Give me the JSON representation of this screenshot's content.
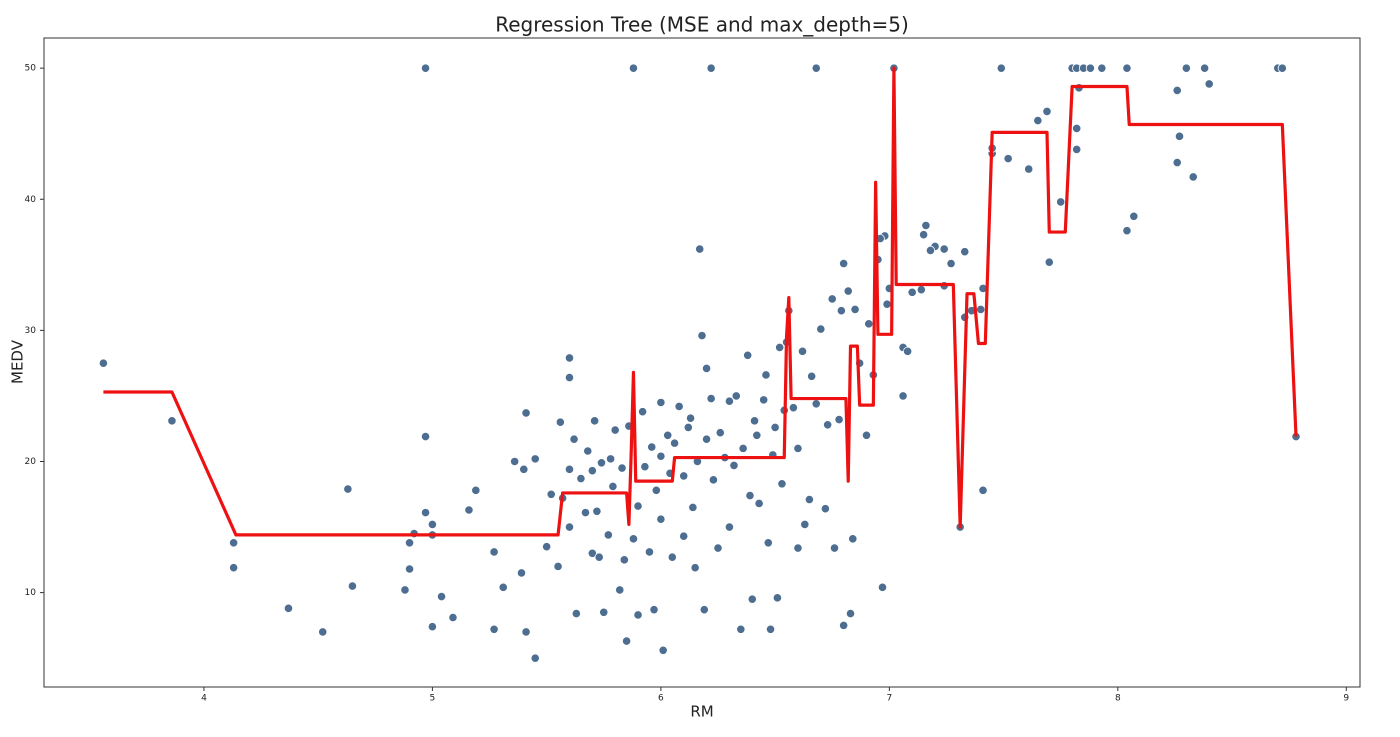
{
  "chart_data": {
    "type": "scatter",
    "title": "Regression Tree (MSE and max_depth=5)",
    "xlabel": "RM",
    "ylabel": "MEDV",
    "xlim": [
      3.3,
      9.06
    ],
    "ylim": [
      2.8,
      52.3
    ],
    "xticks": [
      4,
      5,
      6,
      7,
      8,
      9
    ],
    "yticks": [
      10,
      20,
      30,
      40,
      50
    ],
    "series": [
      {
        "type": "scatter",
        "color": "#4e6e91",
        "x": [
          3.56,
          3.86,
          4.13,
          4.13,
          4.37,
          4.52,
          4.63,
          4.65,
          4.88,
          4.9,
          4.9,
          4.92,
          4.97,
          4.97,
          4.97,
          5.0,
          5.0,
          5.04,
          5.0,
          5.09,
          5.16,
          5.19,
          5.27,
          5.27,
          5.31,
          5.36,
          5.39,
          5.4,
          5.41,
          5.41,
          5.45,
          5.45,
          5.5,
          5.52,
          5.55,
          5.56,
          5.57,
          5.6,
          5.6,
          5.6,
          5.6,
          5.62,
          5.63,
          5.65,
          5.67,
          5.68,
          5.7,
          5.7,
          5.71,
          5.72,
          5.73,
          5.74,
          5.75,
          5.77,
          5.78,
          5.79,
          5.8,
          5.82,
          5.83,
          5.84,
          5.85,
          5.86,
          5.88,
          5.9,
          5.9,
          5.92,
          5.93,
          5.95,
          5.96,
          5.97,
          5.98,
          6.0,
          6.0,
          6.0,
          6.01,
          6.03,
          6.04,
          6.05,
          6.06,
          6.08,
          6.1,
          6.1,
          6.12,
          6.13,
          6.14,
          6.15,
          6.16,
          6.17,
          6.18,
          6.19,
          6.2,
          6.2,
          6.22,
          6.23,
          6.25,
          6.26,
          6.28,
          6.3,
          6.3,
          6.32,
          6.33,
          6.35,
          6.36,
          6.38,
          6.39,
          6.4,
          6.41,
          6.42,
          6.43,
          6.45,
          6.46,
          6.47,
          6.48,
          6.49,
          6.5,
          6.51,
          6.52,
          6.53,
          6.54,
          6.55,
          6.56,
          6.58,
          6.6,
          6.6,
          6.62,
          6.63,
          6.65,
          6.66,
          6.68,
          6.7,
          6.72,
          6.73,
          6.75,
          6.76,
          6.78,
          6.79,
          6.8,
          6.8,
          6.82,
          6.83,
          6.84,
          6.85,
          6.87,
          6.9,
          6.91,
          5.88,
          6.22,
          6.68,
          7.02,
          7.49,
          7.8,
          7.82,
          7.85,
          7.88,
          7.93,
          8.04,
          8.3,
          8.38,
          8.7,
          8.72,
          8.26,
          8.4,
          7.83,
          7.82,
          7.82,
          7.75,
          7.69,
          7.65,
          7.61,
          7.52,
          7.45,
          7.45,
          7.7,
          8.04,
          8.07,
          8.26,
          8.27,
          8.33,
          8.78,
          7.41,
          7.31,
          7.33,
          7.27,
          7.24,
          7.2,
          7.16,
          7.15,
          7.18,
          7.24,
          7.4,
          7.41,
          7.33,
          7.36,
          7.14,
          7.1,
          7.06,
          7.08,
          7.0,
          6.98,
          6.96,
          6.95,
          6.97,
          6.93,
          7.06,
          6.99
        ],
        "values": [
          27.5,
          23.1,
          13.8,
          11.9,
          8.8,
          7.0,
          17.9,
          10.5,
          10.2,
          11.8,
          13.8,
          14.5,
          21.9,
          50,
          16.1,
          7.4,
          15.2,
          9.7,
          14.4,
          8.1,
          16.3,
          17.8,
          13.1,
          7.2,
          10.4,
          20.0,
          11.5,
          19.4,
          23.7,
          7.0,
          5.0,
          20.2,
          13.5,
          17.5,
          12,
          23,
          17.2,
          19.4,
          26.4,
          27.9,
          15,
          21.7,
          8.4,
          18.7,
          16.1,
          20.8,
          13,
          19.3,
          23.1,
          16.2,
          12.7,
          19.9,
          8.5,
          14.4,
          20.2,
          18.1,
          22.4,
          10.2,
          19.5,
          12.5,
          6.3,
          22.7,
          14.1,
          16.6,
          8.3,
          23.8,
          19.6,
          13.1,
          21.1,
          8.7,
          17.8,
          24.5,
          20.4,
          15.6,
          5.6,
          22.0,
          19.1,
          12.7,
          21.4,
          24.2,
          18.9,
          14.3,
          22.6,
          23.3,
          16.5,
          11.9,
          20.0,
          36.2,
          29.6,
          8.7,
          21.7,
          27.1,
          24.8,
          18.6,
          13.4,
          22.2,
          20.3,
          24.6,
          15.0,
          19.7,
          25.0,
          7.2,
          21.0,
          28.1,
          17.4,
          9.5,
          23.1,
          22.0,
          16.8,
          24.7,
          26.6,
          13.8,
          7.2,
          20.5,
          22.6,
          9.6,
          28.7,
          18.3,
          23.9,
          29.1,
          31.5,
          24.1,
          21.0,
          13.4,
          28.4,
          15.2,
          17.1,
          26.5,
          24.4,
          30.1,
          16.4,
          22.8,
          32.4,
          13.4,
          23.2,
          31.5,
          35.1,
          7.5,
          33.0,
          8.4,
          14.1,
          31.6,
          27.5,
          22.0,
          30.5,
          50,
          50,
          50,
          50,
          50,
          50,
          50,
          50,
          50,
          50,
          50,
          50,
          50,
          50,
          50,
          48.3,
          48.8,
          48.5,
          45.4,
          43.8,
          39.8,
          46.7,
          46,
          42.3,
          43.1,
          43.5,
          43.9,
          35.2,
          37.6,
          38.7,
          42.8,
          44.8,
          41.7,
          21.9,
          17.8,
          15,
          36,
          35.1,
          33.4,
          36.4,
          38,
          37.3,
          36.1,
          36.2,
          31.6,
          33.2,
          31.0,
          31.5,
          33.1,
          32.9,
          28.7,
          28.4,
          33.2,
          37.2,
          37.0,
          35.4,
          10.4,
          26.6,
          25.0,
          32.0
        ]
      },
      {
        "type": "line",
        "color": "#ee1111",
        "x": [
          3.56,
          3.86,
          4.14,
          5.55,
          5.57,
          5.85,
          5.86,
          5.87,
          5.88,
          5.89,
          6.05,
          6.06,
          6.54,
          6.55,
          6.56,
          6.57,
          6.81,
          6.82,
          6.83,
          6.86,
          6.87,
          6.93,
          6.94,
          6.95,
          7.01,
          7.02,
          7.03,
          7.28,
          7.31,
          7.34,
          7.37,
          7.39,
          7.42,
          7.45,
          7.69,
          7.7,
          7.77,
          7.8,
          8.04,
          8.05,
          8.72,
          8.78
        ],
        "values": [
          25.3,
          25.3,
          14.4,
          14.4,
          17.6,
          17.6,
          15.2,
          20.6,
          26.8,
          18.5,
          18.5,
          20.3,
          20.3,
          29.5,
          32.5,
          24.8,
          24.8,
          18.5,
          28.8,
          28.8,
          24.3,
          24.3,
          41.3,
          29.7,
          29.7,
          50,
          33.5,
          33.5,
          15,
          32.8,
          32.8,
          29,
          29,
          45.1,
          45.1,
          37.5,
          37.5,
          48.6,
          48.6,
          45.7,
          45.7,
          21.9
        ]
      }
    ]
  }
}
